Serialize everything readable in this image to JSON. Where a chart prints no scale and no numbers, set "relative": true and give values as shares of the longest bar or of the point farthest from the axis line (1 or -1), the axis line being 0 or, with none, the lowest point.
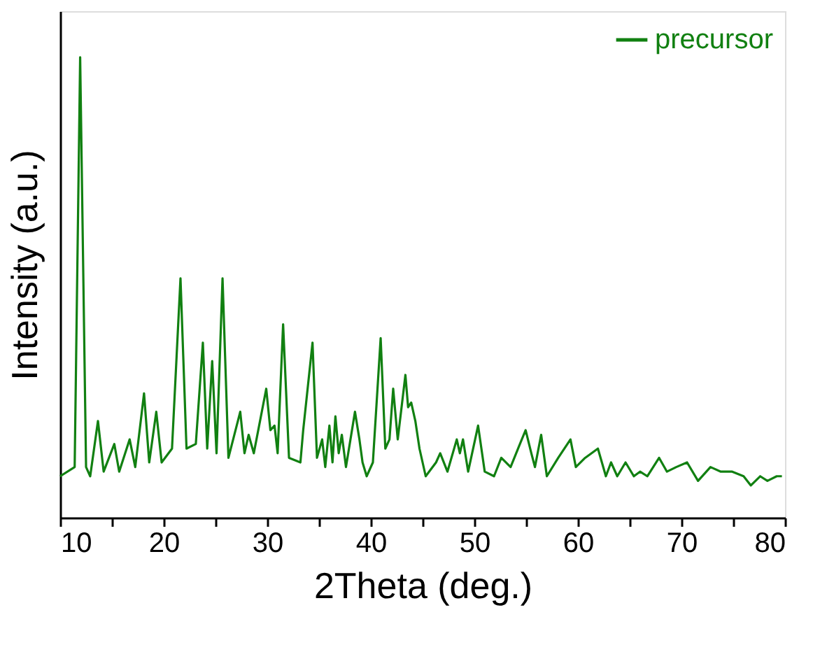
{
  "chart_data": {
    "type": "line",
    "relative": true,
    "xlabel": "2Theta (deg.)",
    "ylabel": "Intensity (a.u.)",
    "xlim": [
      10,
      80
    ],
    "xticks": [
      10,
      {
        "value": 15,
        "label": null
      },
      20,
      {
        "value": 25,
        "label": null
      },
      30,
      {
        "value": 35,
        "label": null
      },
      40,
      {
        "value": 45,
        "label": null
      },
      50,
      {
        "value": 55,
        "label": null
      },
      60,
      {
        "value": 65,
        "label": null
      },
      70,
      {
        "value": 75,
        "label": null
      },
      80
    ],
    "legend": "top right",
    "grid": false,
    "tick_labels": "x",
    "series": [
      {
        "name": "precursor",
        "color": "#118011",
        "x": [
          10,
          11.4,
          11.93,
          12.5,
          12.9,
          13.65,
          14.2,
          15.23,
          15.7,
          16.71,
          17.25,
          18.1,
          18.6,
          19.28,
          19.8,
          20.8,
          21.62,
          22.2,
          23.1,
          23.78,
          24.2,
          24.68,
          25.1,
          25.68,
          26.25,
          27.39,
          27.8,
          28.2,
          28.7,
          29.9,
          30.3,
          30.7,
          31.0,
          31.53,
          32.1,
          33.2,
          33.47,
          34.37,
          34.8,
          35.3,
          35.6,
          36.0,
          36.3,
          36.58,
          36.9,
          37.2,
          37.6,
          38.47,
          38.9,
          39.2,
          39.6,
          40.2,
          40.95,
          41.4,
          41.8,
          42.16,
          42.6,
          43.34,
          43.6,
          43.9,
          44.3,
          44.7,
          45.3,
          46.3,
          46.7,
          47.4,
          48.3,
          48.6,
          48.9,
          49.4,
          50.36,
          51.0,
          51.9,
          52.6,
          53.5,
          54.4,
          54.95,
          55.5,
          55.85,
          56.45,
          57.0,
          58.1,
          59.28,
          59.8,
          60.7,
          61.93,
          62.7,
          63.2,
          63.8,
          64.6,
          65.4,
          66.0,
          66.7,
          67.84,
          68.6,
          69.5,
          70.54,
          71.6,
          72.8,
          73.8,
          74.9,
          76.0,
          76.7,
          77.6,
          78.3,
          79.2,
          79.7
        ],
        "values": [
          0.09,
          0.11,
          1.0,
          0.11,
          0.09,
          0.21,
          0.1,
          0.16,
          0.1,
          0.17,
          0.11,
          0.27,
          0.12,
          0.23,
          0.12,
          0.15,
          0.52,
          0.15,
          0.16,
          0.38,
          0.15,
          0.34,
          0.14,
          0.52,
          0.13,
          0.23,
          0.14,
          0.18,
          0.14,
          0.28,
          0.19,
          0.2,
          0.14,
          0.42,
          0.13,
          0.12,
          0.19,
          0.38,
          0.13,
          0.17,
          0.11,
          0.2,
          0.12,
          0.22,
          0.14,
          0.18,
          0.11,
          0.23,
          0.17,
          0.12,
          0.09,
          0.12,
          0.39,
          0.15,
          0.17,
          0.28,
          0.17,
          0.31,
          0.24,
          0.25,
          0.21,
          0.15,
          0.09,
          0.12,
          0.14,
          0.1,
          0.17,
          0.14,
          0.17,
          0.1,
          0.2,
          0.1,
          0.09,
          0.13,
          0.11,
          0.16,
          0.19,
          0.14,
          0.11,
          0.18,
          0.09,
          0.13,
          0.17,
          0.11,
          0.13,
          0.15,
          0.09,
          0.12,
          0.09,
          0.12,
          0.09,
          0.1,
          0.09,
          0.13,
          0.1,
          0.11,
          0.12,
          0.08,
          0.11,
          0.1,
          0.1,
          0.09,
          0.07,
          0.09,
          0.08,
          0.09,
          0.09
        ]
      }
    ]
  }
}
